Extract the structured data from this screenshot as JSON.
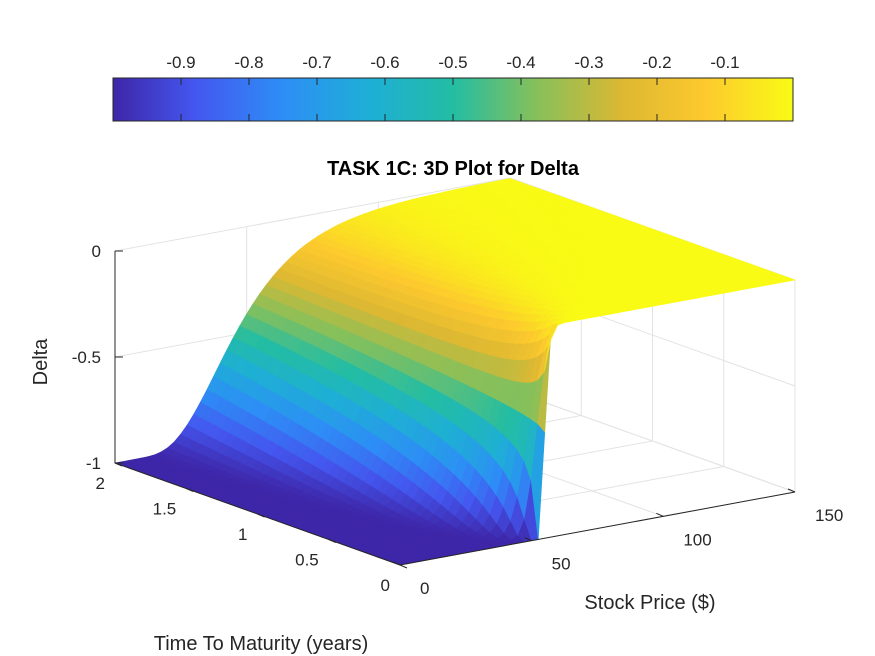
{
  "chart_data": {
    "type": "surface",
    "title": "TASK 1C: 3D Plot for Delta",
    "xlabel": "Stock Price ($)",
    "ylabel": "Time To Maturity (years)",
    "zlabel": "Delta",
    "x_ticks": [
      "0",
      "50",
      "100",
      "150"
    ],
    "y_ticks": [
      "0",
      "0.5",
      "1",
      "1.5",
      "2"
    ],
    "z_ticks": [
      "-1",
      "-0.5",
      "0"
    ],
    "colorbar_ticks": [
      "-0.9",
      "-0.8",
      "-0.7",
      "-0.6",
      "-0.5",
      "-0.4",
      "-0.3",
      "-0.2",
      "-0.1"
    ],
    "xlim": [
      0,
      150
    ],
    "ylim": [
      0,
      2
    ],
    "zlim": [
      -1,
      0
    ],
    "colorbar_range": [
      -1,
      0
    ],
    "colormap": "parula",
    "colorbar_location": "top",
    "grid": true,
    "surface_samples": {
      "stock_price": [
        0,
        25,
        40,
        50,
        55,
        60,
        70,
        90,
        120,
        150
      ],
      "time_to_maturity": [
        0,
        0.5,
        1,
        1.5,
        2
      ],
      "delta": [
        [
          -1,
          -1,
          -1,
          -1,
          -0.5,
          0,
          0,
          0,
          0,
          0
        ],
        [
          -1,
          -1,
          -0.98,
          -0.82,
          -0.6,
          -0.33,
          -0.1,
          -0.01,
          0,
          0
        ],
        [
          -1,
          -0.99,
          -0.9,
          -0.72,
          -0.57,
          -0.43,
          -0.22,
          -0.06,
          -0.01,
          0
        ],
        [
          -1,
          -0.98,
          -0.85,
          -0.67,
          -0.55,
          -0.45,
          -0.28,
          -0.1,
          -0.02,
          0
        ],
        [
          -1,
          -0.96,
          -0.8,
          -0.64,
          -0.53,
          -0.45,
          -0.32,
          -0.14,
          -0.03,
          -0.01
        ]
      ]
    }
  }
}
